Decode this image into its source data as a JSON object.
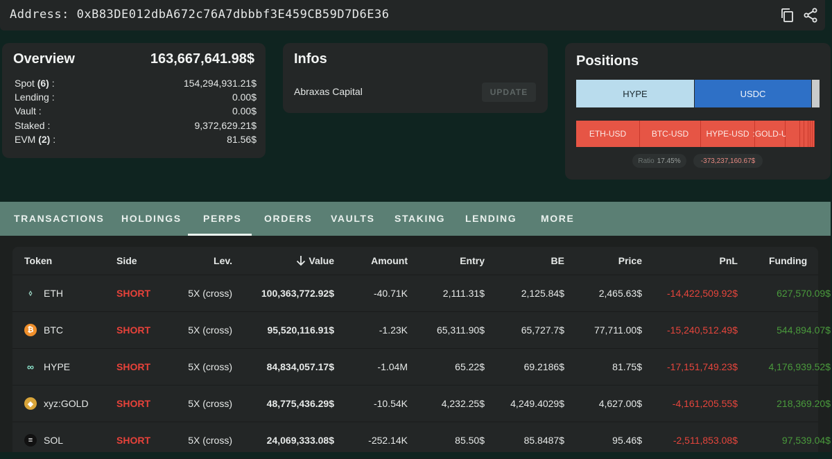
{
  "address": {
    "label": "Address: 0xB83DE012dbA672c76A7dbbbf3E459CB59D7D6E36",
    "copy_icon": "copy-icon",
    "share_icon": "share-icon"
  },
  "overview": {
    "title": "Overview",
    "total": "163,667,641.98$",
    "rows": [
      {
        "label_prefix": "Spot ",
        "count": "(6)",
        "label_suffix": " :",
        "value": "154,294,931.21$"
      },
      {
        "label_prefix": "Lending :",
        "count": "",
        "label_suffix": "",
        "value": "0.00$"
      },
      {
        "label_prefix": "Vault :",
        "count": "",
        "label_suffix": "",
        "value": "0.00$"
      },
      {
        "label_prefix": "Staked :",
        "count": "",
        "label_suffix": "",
        "value": "9,372,629.21$"
      },
      {
        "label_prefix": "EVM ",
        "count": "(2)",
        "label_suffix": " :",
        "value": "81.56$"
      }
    ]
  },
  "infos": {
    "title": "Infos",
    "name": "Abraxas Capital",
    "update_label": "UPDATE"
  },
  "positions": {
    "title": "Positions",
    "spot": [
      {
        "label": "HYPE",
        "color": "#b9dced"
      },
      {
        "label": "USDC",
        "color": "#2e70c6"
      },
      {
        "label": "",
        "color": "#c9cccc"
      }
    ],
    "perps": [
      {
        "label": "ETH-USD",
        "color": "#e65545"
      },
      {
        "label": "BTC-USD",
        "color": "#e65545"
      },
      {
        "label": "HYPE-USD",
        "color": "#e65545"
      },
      {
        "label": ":GOLD-U",
        "color": "#e65545"
      },
      {
        "label": "",
        "color": "#e65545"
      },
      {
        "label": "",
        "color": "#e65545"
      },
      {
        "label": "",
        "color": "#e65545"
      },
      {
        "label": "",
        "color": "#e65545"
      },
      {
        "label": "",
        "color": "#e65545"
      },
      {
        "label": "",
        "color": "#e65545"
      }
    ],
    "ratio_label": "Ratio",
    "ratio_value": "17.45%",
    "net_value": "-373,237,160.67$"
  },
  "tabs": [
    {
      "label": "TRANSACTIONS",
      "active": false
    },
    {
      "label": "HOLDINGS",
      "active": false
    },
    {
      "label": "PERPS",
      "active": true
    },
    {
      "label": "ORDERS",
      "active": false
    },
    {
      "label": "VAULTS",
      "active": false
    },
    {
      "label": "STAKING",
      "active": false
    },
    {
      "label": "LENDING",
      "active": false
    },
    {
      "label": "MORE",
      "active": false
    }
  ],
  "table": {
    "sort_icon": "arrow-down-icon",
    "columns": [
      "Token",
      "Side",
      "Lev.",
      "Value",
      "Amount",
      "Entry",
      "BE",
      "Price",
      "PnL",
      "Funding"
    ],
    "rows": [
      {
        "icon": "eth-icon",
        "icon_color": "#232626",
        "icon_glyph": "⬨",
        "token": "ETH",
        "side": "SHORT",
        "lev": "5X (cross)",
        "value": "100,363,772.92$",
        "amount": "-40.71K",
        "entry": "2,111.31$",
        "be": "2,125.84$",
        "price": "2,465.63$",
        "pnl": "-14,422,509.92$",
        "funding": "627,570.09$"
      },
      {
        "icon": "btc-icon",
        "icon_color": "#f08f2b",
        "icon_glyph": "₿",
        "token": "BTC",
        "side": "SHORT",
        "lev": "5X (cross)",
        "value": "95,520,116.91$",
        "amount": "-1.23K",
        "entry": "65,311.90$",
        "be": "65,727.7$",
        "price": "77,711.00$",
        "pnl": "-15,240,512.49$",
        "funding": "544,894.07$"
      },
      {
        "icon": "hype-icon",
        "icon_color": "#232626",
        "icon_glyph": "∞",
        "token": "HYPE",
        "side": "SHORT",
        "lev": "5X (cross)",
        "value": "84,834,057.17$",
        "amount": "-1.04M",
        "entry": "65.22$",
        "be": "69.2186$",
        "price": "81.75$",
        "pnl": "-17,151,749.23$",
        "funding": "4,176,939.52$"
      },
      {
        "icon": "gold-icon",
        "icon_color": "#d9a53a",
        "icon_glyph": "◆",
        "token": "xyz:GOLD",
        "side": "SHORT",
        "lev": "5X (cross)",
        "value": "48,775,436.29$",
        "amount": "-10.54K",
        "entry": "4,232.25$",
        "be": "4,249.4029$",
        "price": "4,627.00$",
        "pnl": "-4,161,205.55$",
        "funding": "218,369.20$"
      },
      {
        "icon": "sol-icon",
        "icon_color": "#111111",
        "icon_glyph": "≡",
        "token": "SOL",
        "side": "SHORT",
        "lev": "5X (cross)",
        "value": "24,069,333.08$",
        "amount": "-252.14K",
        "entry": "85.50$",
        "be": "85.8487$",
        "price": "95.46$",
        "pnl": "-2,511,853.08$",
        "funding": "97,539.04$"
      }
    ]
  }
}
